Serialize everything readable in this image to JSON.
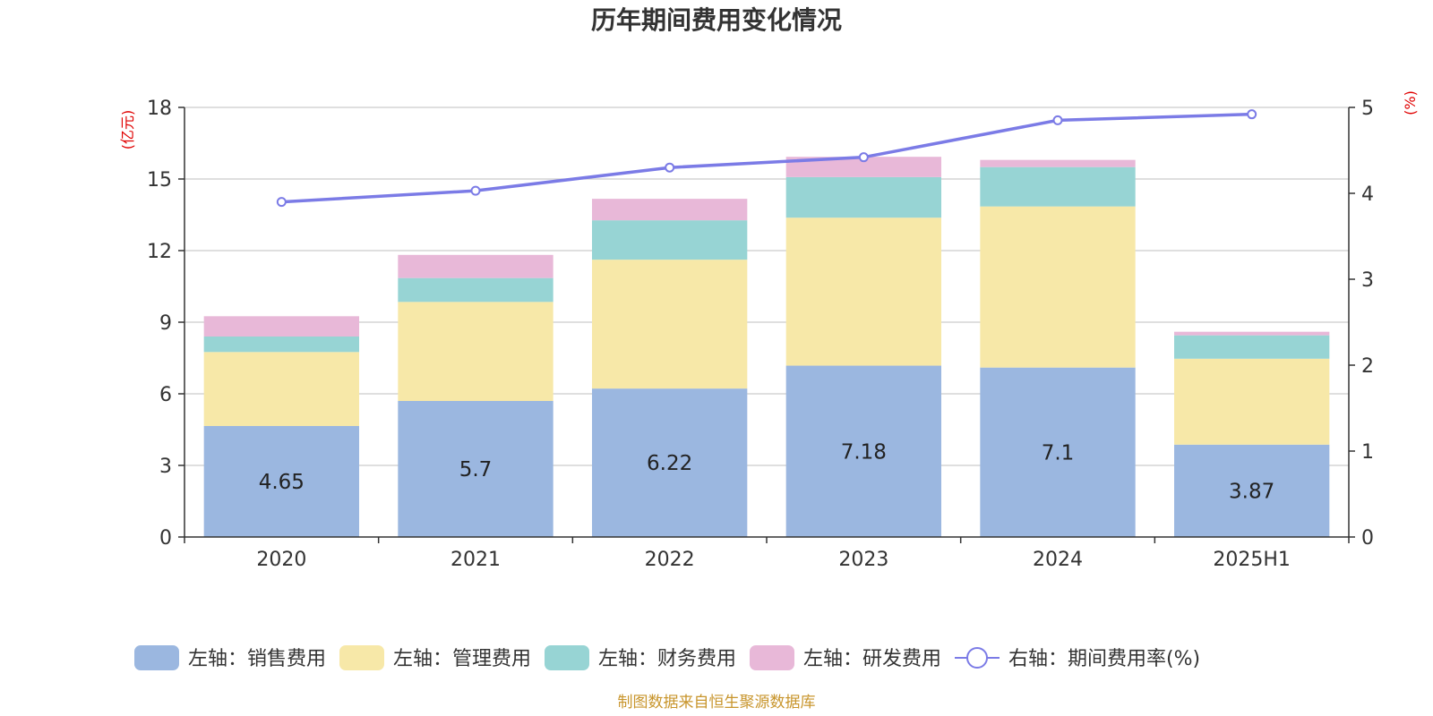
{
  "chart_data": {
    "type": "bar",
    "title": "历年期间费用变化情况",
    "categories": [
      "2020",
      "2021",
      "2022",
      "2023",
      "2024",
      "2025H1"
    ],
    "left_axis": {
      "unit": "(亿元)",
      "ylim": [
        0,
        18
      ],
      "ticks": [
        "0",
        "3",
        "6",
        "9",
        "12",
        "15",
        "18"
      ]
    },
    "right_axis": {
      "unit": "(%)",
      "ylim": [
        0,
        5
      ],
      "ticks": [
        "0",
        "1",
        "2",
        "3",
        "4",
        "5"
      ]
    },
    "stacked": true,
    "grid": true,
    "legend_position": "bottom",
    "series": [
      {
        "name": "左轴：销售费用",
        "type": "bar",
        "axis": "left",
        "color": "#9bb7e0",
        "values": [
          4.65,
          5.7,
          6.22,
          7.18,
          7.1,
          3.87
        ],
        "labels": [
          "4.65",
          "5.7",
          "6.22",
          "7.18",
          "7.1",
          "3.87"
        ]
      },
      {
        "name": "左轴：管理费用",
        "type": "bar",
        "axis": "left",
        "color": "#f7e8a8",
        "values": [
          3.1,
          4.15,
          5.4,
          6.2,
          6.75,
          3.6
        ]
      },
      {
        "name": "左轴：财务费用",
        "type": "bar",
        "axis": "left",
        "color": "#97d4d4",
        "values": [
          0.65,
          1.0,
          1.65,
          1.7,
          1.65,
          0.98
        ]
      },
      {
        "name": "左轴：研发费用",
        "type": "bar",
        "axis": "left",
        "color": "#e8b8d8",
        "values": [
          0.85,
          0.97,
          0.9,
          0.85,
          0.3,
          0.15
        ]
      },
      {
        "name": "右轴：期间费用率(%)",
        "type": "line",
        "axis": "right",
        "color": "#7b7be6",
        "values": [
          3.9,
          4.03,
          4.3,
          4.42,
          4.85,
          4.92
        ]
      }
    ],
    "source": "制图数据来自恒生聚源数据库"
  }
}
